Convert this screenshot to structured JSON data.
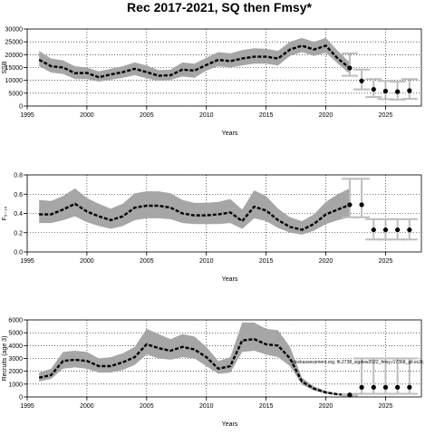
{
  "title": "Rec 2017-2021, SQ then Fmsy*",
  "note": "stockassessment.org, fit.2738_sigdew2022_fmsy.r17368_git.ec2c",
  "chart_data": [
    {
      "type": "line",
      "ylabel": "SSB",
      "xlabel": "Years",
      "xlim": [
        1995,
        2028
      ],
      "ylim": [
        0,
        30000
      ],
      "x_ticks": [
        1995,
        2000,
        2005,
        2010,
        2015,
        2020,
        2025
      ],
      "y_ticks": [
        0,
        5000,
        10000,
        15000,
        20000,
        25000,
        30000
      ],
      "grid": true,
      "series": [
        {
          "x": [
            1996,
            1997,
            1998,
            1999,
            2000,
            2001,
            2002,
            2003,
            2004,
            2005,
            2006,
            2007,
            2008,
            2009,
            2010,
            2011,
            2012,
            2013,
            2014,
            2015,
            2016,
            2017,
            2018,
            2019,
            2020,
            2021,
            2022
          ],
          "values": [
            18000,
            15500,
            15000,
            12800,
            12900,
            11200,
            12300,
            13200,
            14500,
            13200,
            11800,
            12000,
            14200,
            13800,
            16000,
            18000,
            17500,
            18500,
            19200,
            19200,
            18500,
            22000,
            23500,
            22000,
            23500,
            18500,
            14800
          ],
          "lower": [
            15500,
            13000,
            12500,
            10500,
            10500,
            9500,
            10300,
            11000,
            12000,
            10800,
            9800,
            10200,
            11500,
            11000,
            13800,
            15500,
            15000,
            15800,
            16500,
            16500,
            15800,
            19500,
            21000,
            19500,
            20800,
            16500,
            12500
          ],
          "upper": [
            21500,
            18500,
            17800,
            15500,
            15000,
            13500,
            14500,
            15500,
            17000,
            15800,
            14000,
            14200,
            17000,
            16500,
            18800,
            21000,
            20500,
            21800,
            22500,
            22300,
            21500,
            25000,
            26500,
            25000,
            26500,
            21500,
            17000
          ]
        }
      ],
      "forecast": {
        "x": [
          2022,
          2023,
          2024,
          2025,
          2026,
          2027
        ],
        "values": [
          14800,
          9800,
          6500,
          5800,
          5600,
          6000
        ],
        "lower": [
          11800,
          6500,
          3500,
          2700,
          2500,
          2800
        ],
        "upper": [
          20500,
          14200,
          10500,
          9800,
          9500,
          10500
        ]
      }
    },
    {
      "type": "line",
      "ylabel": "F₅₋₁₀",
      "xlabel": "Years",
      "xlim": [
        1995,
        2028
      ],
      "ylim": [
        0,
        0.8
      ],
      "x_ticks": [
        1995,
        2000,
        2005,
        2010,
        2015,
        2020,
        2025
      ],
      "y_ticks": [
        0.0,
        0.2,
        0.4,
        0.6,
        0.8
      ],
      "y_tick_labels": [
        "0.0",
        "0.2",
        "0.4",
        "0.6",
        "0.8"
      ],
      "grid": true,
      "series": [
        {
          "x": [
            1996,
            1997,
            1998,
            1999,
            2000,
            2001,
            2002,
            2003,
            2004,
            2005,
            2006,
            2007,
            2008,
            2009,
            2010,
            2011,
            2012,
            2013,
            2014,
            2015,
            2016,
            2017,
            2018,
            2019,
            2020,
            2021,
            2022
          ],
          "values": [
            0.39,
            0.39,
            0.44,
            0.5,
            0.42,
            0.37,
            0.33,
            0.37,
            0.46,
            0.48,
            0.48,
            0.46,
            0.4,
            0.38,
            0.38,
            0.39,
            0.41,
            0.32,
            0.47,
            0.43,
            0.33,
            0.26,
            0.23,
            0.29,
            0.39,
            0.44,
            0.49
          ],
          "lower": [
            0.3,
            0.3,
            0.33,
            0.37,
            0.31,
            0.27,
            0.24,
            0.27,
            0.33,
            0.35,
            0.35,
            0.34,
            0.3,
            0.29,
            0.29,
            0.29,
            0.3,
            0.24,
            0.35,
            0.32,
            0.25,
            0.2,
            0.18,
            0.22,
            0.29,
            0.33,
            0.36
          ],
          "upper": [
            0.54,
            0.53,
            0.58,
            0.66,
            0.56,
            0.5,
            0.45,
            0.5,
            0.61,
            0.63,
            0.63,
            0.61,
            0.54,
            0.51,
            0.51,
            0.52,
            0.55,
            0.44,
            0.64,
            0.58,
            0.45,
            0.36,
            0.32,
            0.39,
            0.52,
            0.6,
            0.66
          ]
        }
      ],
      "forecast": {
        "x": [
          2022,
          2023,
          2024,
          2025,
          2026,
          2027
        ],
        "values": [
          0.49,
          0.49,
          0.23,
          0.23,
          0.23,
          0.23
        ],
        "lower": [
          0.36,
          0.36,
          0.13,
          0.13,
          0.13,
          0.13
        ],
        "upper": [
          0.76,
          0.76,
          0.34,
          0.34,
          0.34,
          0.34
        ]
      }
    },
    {
      "type": "line",
      "ylabel": "Recruits (age 3)",
      "xlabel": "Years",
      "xlim": [
        1995,
        2028
      ],
      "ylim": [
        0,
        6000
      ],
      "x_ticks": [
        1995,
        2000,
        2005,
        2010,
        2015,
        2020,
        2025
      ],
      "y_ticks": [
        0,
        1000,
        2000,
        3000,
        4000,
        5000,
        6000
      ],
      "grid": true,
      "series": [
        {
          "x": [
            1996,
            1997,
            1998,
            1999,
            2000,
            2001,
            2002,
            2003,
            2004,
            2005,
            2006,
            2007,
            2008,
            2009,
            2010,
            2011,
            2012,
            2013,
            2014,
            2015,
            2016,
            2017,
            2018,
            2019,
            2020,
            2021,
            2022
          ],
          "values": [
            1500,
            1700,
            2800,
            2900,
            2800,
            2400,
            2400,
            2700,
            3100,
            4100,
            3800,
            3600,
            3900,
            3700,
            3100,
            2200,
            2400,
            4400,
            4500,
            4100,
            4000,
            3000,
            1200,
            650,
            350,
            200,
            160
          ],
          "lower": [
            1200,
            1400,
            2200,
            2300,
            2200,
            1900,
            1900,
            2100,
            2500,
            3300,
            3000,
            2900,
            3100,
            3000,
            2400,
            1800,
            1900,
            3500,
            3600,
            3300,
            3100,
            2400,
            950,
            500,
            260,
            150,
            110
          ],
          "upper": [
            1900,
            2200,
            3500,
            3600,
            3500,
            3000,
            3100,
            3400,
            3900,
            5300,
            4900,
            4500,
            4900,
            4700,
            3900,
            2800,
            3100,
            5800,
            5800,
            5300,
            5200,
            3900,
            1500,
            820,
            460,
            260,
            220
          ]
        }
      ],
      "forecast": {
        "x": [
          2022,
          2023,
          2024,
          2025,
          2026,
          2027
        ],
        "values": [
          160,
          750,
          750,
          750,
          750,
          750
        ],
        "lower": [
          110,
          250,
          250,
          250,
          250,
          250
        ],
        "upper": [
          220,
          3000,
          3000,
          3000,
          3000,
          3000
        ]
      }
    }
  ]
}
